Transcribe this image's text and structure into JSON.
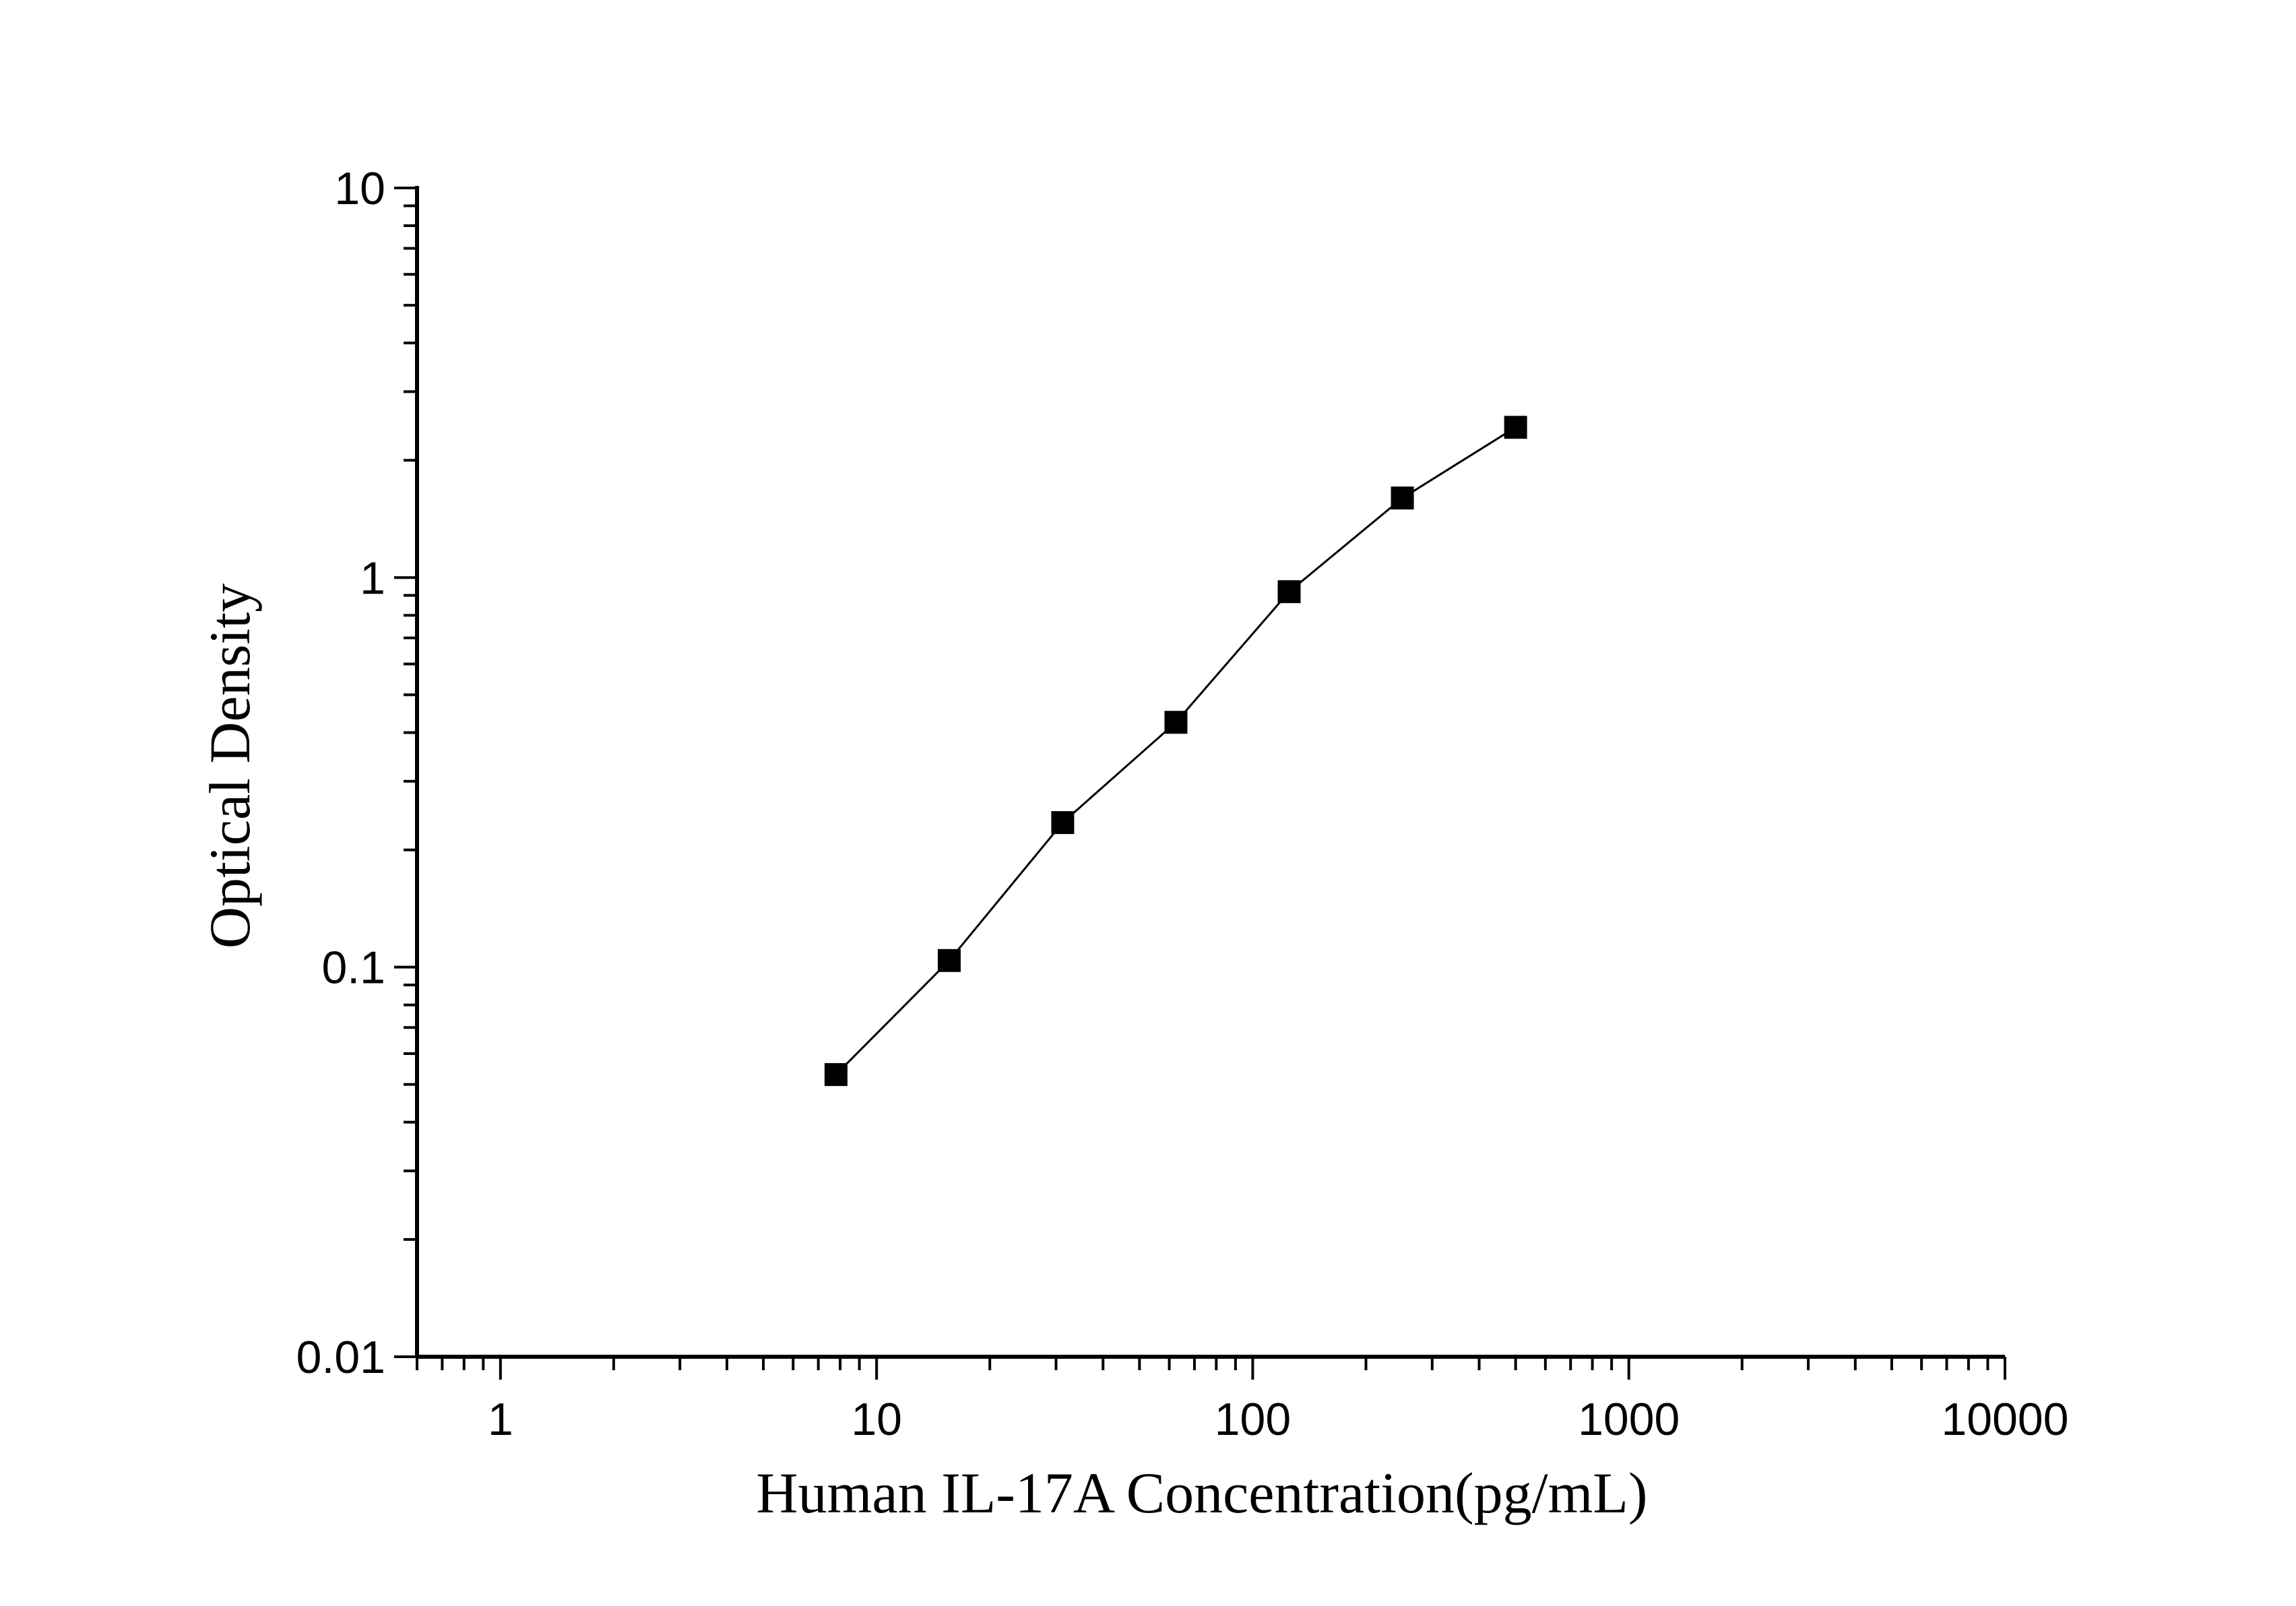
{
  "chart_data": {
    "type": "scatter",
    "title": "",
    "xlabel": "Human IL-17A Concentration(pg/mL)",
    "ylabel": "Optical Density",
    "x_scale": "log",
    "y_scale": "log",
    "xlim": [
      0.6,
      10000
    ],
    "ylim": [
      0.01,
      10
    ],
    "x_ticks": [
      1,
      10,
      100,
      1000,
      10000
    ],
    "x_tick_labels": [
      "1",
      "10",
      "100",
      "1000",
      "10000"
    ],
    "y_ticks": [
      0.01,
      0.1,
      1,
      10
    ],
    "y_tick_labels": [
      "0.01",
      "0.1",
      "1",
      "10"
    ],
    "grid": false,
    "legend": "none",
    "series": [
      {
        "marker": "square",
        "line": true,
        "color": "#000000",
        "x": [
          7.8,
          15.6,
          31.25,
          62.5,
          125,
          250,
          500
        ],
        "y": [
          0.053,
          0.104,
          0.235,
          0.425,
          0.92,
          1.6,
          2.43
        ]
      }
    ]
  }
}
